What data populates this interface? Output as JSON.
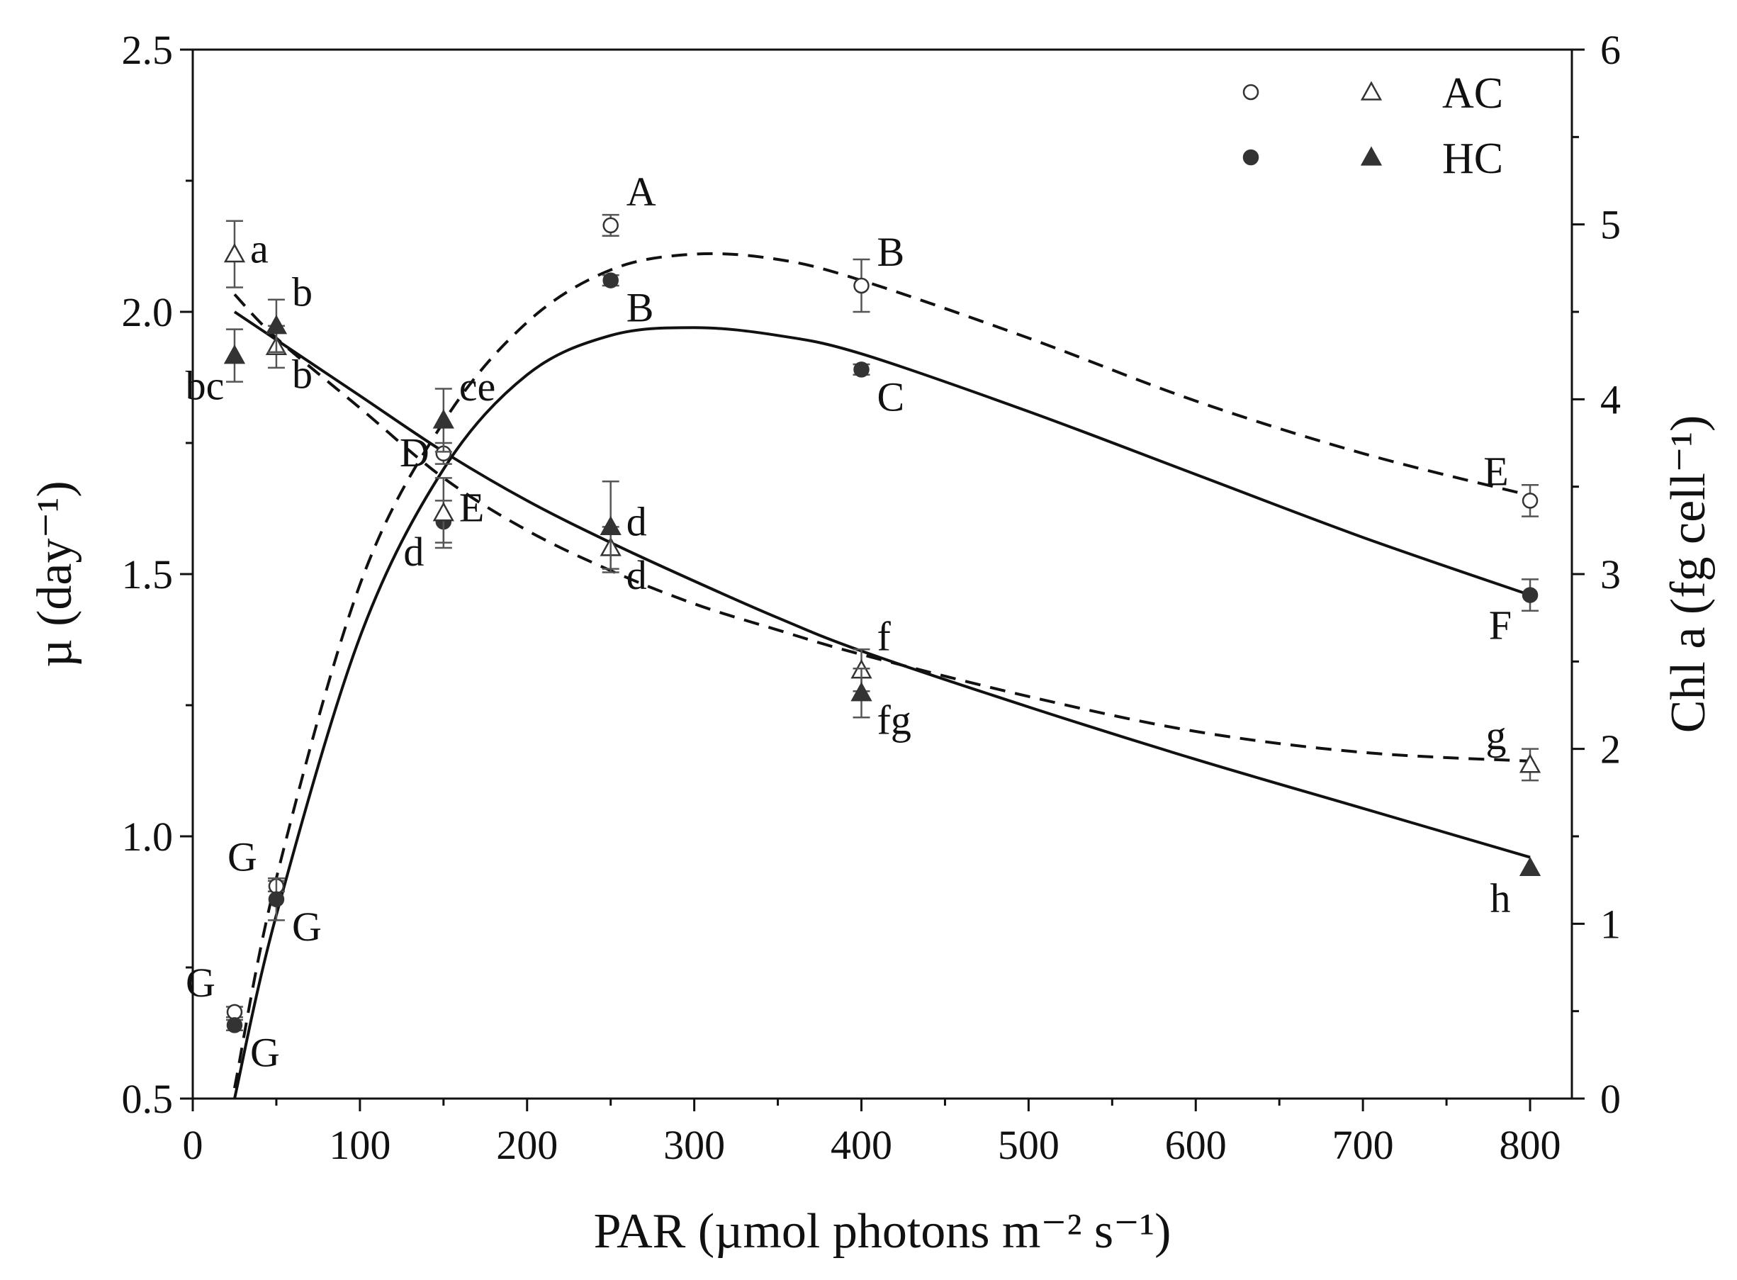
{
  "chart_data": {
    "type": "scatter",
    "title": "",
    "xlabel": "PAR (µmol photons m⁻² s⁻¹)",
    "ylabel_left": "µ (day⁻¹)",
    "ylabel_right": "Chl a (fg cell⁻¹)",
    "xlim": [
      0,
      825
    ],
    "ylim_left": [
      0.5,
      2.5
    ],
    "ylim_right": [
      0,
      6
    ],
    "x_ticks": [
      0,
      100,
      200,
      300,
      400,
      500,
      600,
      700,
      800
    ],
    "y_left_ticks": [
      0.5,
      1.0,
      1.5,
      2.0,
      2.5
    ],
    "y_left_tick_labels": [
      "0.5",
      "1.0",
      "1.5",
      "2.0",
      "2.5"
    ],
    "y_right_ticks": [
      0,
      1,
      2,
      3,
      4,
      5,
      6
    ],
    "legend": {
      "placement": "top-right",
      "rows": [
        {
          "label": "AC",
          "circle_filled": false,
          "triangle_filled": false
        },
        {
          "label": "HC",
          "circle_filled": true,
          "triangle_filled": true
        }
      ]
    },
    "series": [
      {
        "name": "AC µ",
        "marker": "open-circle",
        "axis": "left",
        "points": [
          {
            "x": 25,
            "y": 0.665,
            "err": 0.01,
            "letter": "G",
            "lpos": "ul"
          },
          {
            "x": 50,
            "y": 0.905,
            "err": 0.01,
            "letter": "G",
            "lpos": "ul"
          },
          {
            "x": 150,
            "y": 1.73,
            "err": 0.02,
            "letter": "D",
            "lpos": "l"
          },
          {
            "x": 250,
            "y": 2.165,
            "err": 0.02,
            "letter": "A",
            "lpos": "ur"
          },
          {
            "x": 400,
            "y": 2.05,
            "err": 0.05,
            "letter": "B",
            "lpos": "ur"
          },
          {
            "x": 800,
            "y": 1.64,
            "err": 0.03,
            "letter": "E",
            "lpos": "ul"
          }
        ]
      },
      {
        "name": "HC µ",
        "marker": "filled-circle",
        "axis": "left",
        "points": [
          {
            "x": 25,
            "y": 0.64,
            "err": 0.01,
            "letter": "G",
            "lpos": "lr"
          },
          {
            "x": 50,
            "y": 0.88,
            "err": 0.04,
            "letter": "G",
            "lpos": "lr"
          },
          {
            "x": 150,
            "y": 1.6,
            "err": 0.04,
            "letter": "d",
            "lpos": "ll"
          },
          {
            "x": 250,
            "y": 2.06,
            "err": 0.01,
            "letter": "B",
            "lpos": "lr"
          },
          {
            "x": 400,
            "y": 1.89,
            "err": 0.01,
            "letter": "C",
            "lpos": "lr"
          },
          {
            "x": 800,
            "y": 1.46,
            "err": 0.03,
            "letter": "F",
            "lpos": "ll"
          }
        ]
      },
      {
        "name": "AC Chl a",
        "marker": "open-triangle",
        "axis": "right",
        "points": [
          {
            "x": 25,
            "y": 4.83,
            "err": 0.19,
            "letter": "a",
            "lpos": "r"
          },
          {
            "x": 50,
            "y": 4.3,
            "err": 0.12,
            "letter": "b",
            "lpos": "lr"
          },
          {
            "x": 150,
            "y": 3.35,
            "err": 0.2,
            "letter": "E",
            "lpos": "r"
          },
          {
            "x": 250,
            "y": 3.15,
            "err": 0.12,
            "letter": "d",
            "lpos": "lr"
          },
          {
            "x": 400,
            "y": 2.45,
            "err": 0.12,
            "letter": "f",
            "lpos": "ur"
          },
          {
            "x": 800,
            "y": 1.91,
            "err": 0.09,
            "letter": "g",
            "lpos": "ul"
          }
        ]
      },
      {
        "name": "HC Chl a",
        "marker": "filled-triangle",
        "axis": "right",
        "points": [
          {
            "x": 25,
            "y": 4.25,
            "err": 0.15,
            "letter": "bc",
            "lpos": "ll"
          },
          {
            "x": 50,
            "y": 4.42,
            "err": 0.15,
            "letter": "b",
            "lpos": "ur"
          },
          {
            "x": 150,
            "y": 3.88,
            "err": 0.18,
            "letter": "ce",
            "lpos": "ur"
          },
          {
            "x": 250,
            "y": 3.27,
            "err": 0.26,
            "letter": "d",
            "lpos": "r"
          },
          {
            "x": 400,
            "y": 2.32,
            "err": 0.14,
            "letter": "fg",
            "lpos": "lr"
          },
          {
            "x": 800,
            "y": 1.32,
            "err": 0.0,
            "letter": "h",
            "lpos": "ll"
          }
        ]
      }
    ],
    "fit_curves": [
      {
        "name": "AC µ fit",
        "style": "dashed",
        "axis": "left",
        "x": [
          25,
          50,
          100,
          150,
          200,
          250,
          300,
          350,
          400,
          500,
          600,
          700,
          800
        ],
        "y": [
          0.52,
          0.92,
          1.48,
          1.79,
          1.98,
          2.08,
          2.11,
          2.1,
          2.06,
          1.95,
          1.83,
          1.73,
          1.65
        ]
      },
      {
        "name": "HC µ fit",
        "style": "solid",
        "axis": "left",
        "x": [
          25,
          50,
          100,
          150,
          200,
          250,
          300,
          350,
          400,
          500,
          600,
          700,
          800
        ],
        "y": [
          0.5,
          0.85,
          1.38,
          1.7,
          1.88,
          1.955,
          1.97,
          1.955,
          1.92,
          1.81,
          1.69,
          1.57,
          1.46
        ]
      },
      {
        "name": "AC Chl a fit",
        "style": "dashed",
        "axis": "right",
        "x": [
          25,
          50,
          100,
          150,
          200,
          250,
          300,
          350,
          400,
          500,
          600,
          700,
          800
        ],
        "y": [
          4.6,
          4.35,
          3.95,
          3.55,
          3.25,
          3.02,
          2.83,
          2.68,
          2.54,
          2.3,
          2.1,
          1.98,
          1.93
        ]
      },
      {
        "name": "HC Chl a fit",
        "style": "solid",
        "axis": "right",
        "x": [
          25,
          50,
          100,
          150,
          200,
          250,
          300,
          350,
          400,
          500,
          600,
          700,
          800
        ],
        "y": [
          4.5,
          4.34,
          4.02,
          3.7,
          3.42,
          3.18,
          2.96,
          2.75,
          2.56,
          2.24,
          1.94,
          1.66,
          1.38
        ]
      }
    ]
  }
}
